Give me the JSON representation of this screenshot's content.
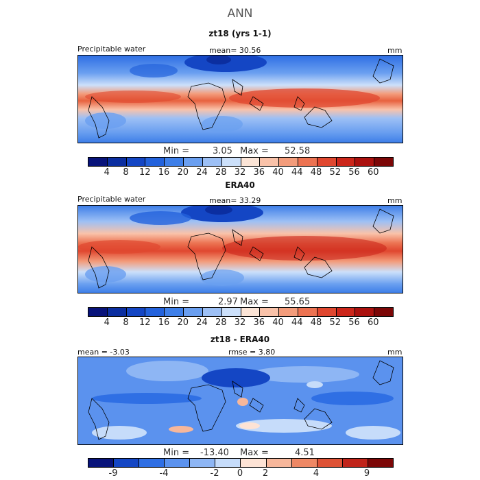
{
  "header": {
    "title": "ANN"
  },
  "palettes": {
    "full": [
      "#08137a",
      "#0b2ea0",
      "#1446c4",
      "#2362dc",
      "#3e7fe8",
      "#6a9ff0",
      "#9dc0f5",
      "#cce0fa",
      "#fbe4d6",
      "#f9c2a9",
      "#f39c7b",
      "#ec7352",
      "#e0472f",
      "#cc261a",
      "#ab110e",
      "#7c0707"
    ],
    "diff": [
      "#08137a",
      "#1446c4",
      "#2f6fe4",
      "#5b92ee",
      "#8eb6f4",
      "#c6dcfa",
      "#fde3d5",
      "#f7b79b",
      "#ee8865",
      "#de5236",
      "#c0241a",
      "#7c0707"
    ]
  },
  "panels": [
    {
      "title": "zt18 (yrs 1-1)",
      "left_label": "Precipitable water",
      "center_label": "mean=  30.56",
      "unit": "mm",
      "min_label": "Min =",
      "min_value": "3.05",
      "max_label": "Max =",
      "max_value": "52.58",
      "colorbar_ticks": [
        "4",
        "8",
        "12",
        "16",
        "20",
        "24",
        "28",
        "32",
        "36",
        "40",
        "44",
        "48",
        "52",
        "56",
        "60"
      ]
    },
    {
      "title": "ERA40",
      "left_label": "Precipitable water",
      "center_label": "mean=  33.29",
      "unit": "mm",
      "min_label": "Min =",
      "min_value": "2.97",
      "max_label": "Max =",
      "max_value": "55.65",
      "colorbar_ticks": [
        "4",
        "8",
        "12",
        "16",
        "20",
        "24",
        "28",
        "32",
        "36",
        "40",
        "44",
        "48",
        "52",
        "56",
        "60"
      ]
    },
    {
      "title": "zt18 - ERA40",
      "left_label": "mean =  -3.03",
      "center_label": "rmse =   3.80",
      "unit": "mm",
      "min_label": "Min =",
      "min_value": "-13.40",
      "max_label": "Max =",
      "max_value": "4.51",
      "colorbar_ticks": [
        "-9",
        "-4",
        "-2",
        "0",
        "2",
        "4",
        "9"
      ]
    }
  ]
}
